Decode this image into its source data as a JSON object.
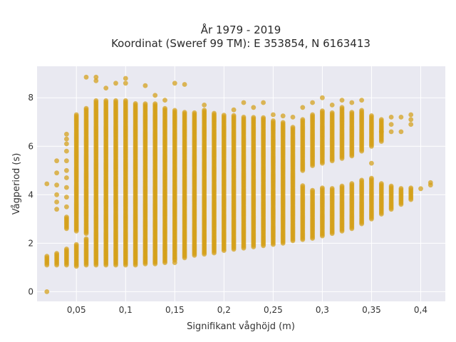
{
  "chart_data": {
    "type": "scatter",
    "title_line1": "År 1979 - 2019",
    "title_line2": "Koordinat (Sweref 99 TM): E 353854, N 6163413",
    "xlabel": "Signifikant våghöjd (m)",
    "ylabel": "Vågperiod (s)",
    "xlim": [
      0.01,
      0.425
    ],
    "ylim": [
      -0.4,
      9.3
    ],
    "x_ticks": [
      0.05,
      0.1,
      0.15,
      0.2,
      0.25,
      0.3,
      0.35,
      0.4
    ],
    "x_tick_labels": [
      "0,05",
      "0,1",
      "0,15",
      "0,2",
      "0,25",
      "0,3",
      "0,35",
      "0,4"
    ],
    "y_ticks": [
      0,
      2,
      4,
      6,
      8
    ],
    "y_tick_labels": [
      "0",
      "2",
      "4",
      "6",
      "8"
    ],
    "grid": true,
    "legend": "none",
    "colors": {
      "background": "#e9e9f1",
      "grid": "#ffffff",
      "point": "#d4a017"
    },
    "columns": [
      {
        "x": 0.02,
        "segments": [
          [
            1.1,
            1.5
          ]
        ],
        "points": [
          0.0,
          4.45
        ]
      },
      {
        "x": 0.03,
        "segments": [
          [
            1.1,
            1.6
          ]
        ],
        "points": [
          3.4,
          3.7,
          4.0,
          4.4,
          4.9,
          5.4
        ]
      },
      {
        "x": 0.04,
        "segments": [
          [
            1.1,
            1.8
          ],
          [
            2.6,
            3.1
          ]
        ],
        "points": [
          3.5,
          3.9,
          4.3,
          4.7,
          5.0,
          5.4,
          5.8,
          6.1,
          6.3,
          6.5
        ]
      },
      {
        "x": 0.05,
        "segments": [
          [
            1.05,
            2.0
          ],
          [
            2.5,
            7.3
          ]
        ],
        "points": []
      },
      {
        "x": 0.06,
        "segments": [
          [
            1.1,
            2.2
          ],
          [
            2.4,
            7.6
          ]
        ],
        "points": [
          8.85
        ]
      },
      {
        "x": 0.07,
        "segments": [
          [
            1.1,
            7.9
          ]
        ],
        "points": [
          8.7,
          8.85
        ]
      },
      {
        "x": 0.08,
        "segments": [
          [
            1.1,
            7.9
          ]
        ],
        "points": [
          8.4
        ]
      },
      {
        "x": 0.09,
        "segments": [
          [
            1.1,
            7.9
          ]
        ],
        "points": [
          8.6
        ]
      },
      {
        "x": 0.1,
        "segments": [
          [
            1.1,
            7.9
          ]
        ],
        "points": [
          8.6,
          8.8
        ]
      },
      {
        "x": 0.11,
        "segments": [
          [
            1.1,
            7.8
          ]
        ],
        "points": []
      },
      {
        "x": 0.12,
        "segments": [
          [
            1.15,
            7.8
          ]
        ],
        "points": [
          8.5
        ]
      },
      {
        "x": 0.13,
        "segments": [
          [
            1.15,
            7.8
          ]
        ],
        "points": [
          8.1
        ]
      },
      {
        "x": 0.14,
        "segments": [
          [
            1.2,
            7.6
          ]
        ],
        "points": [
          7.9
        ]
      },
      {
        "x": 0.15,
        "segments": [
          [
            1.3,
            7.5
          ]
        ],
        "points": [
          1.2,
          8.6
        ]
      },
      {
        "x": 0.16,
        "segments": [
          [
            1.4,
            7.4
          ]
        ],
        "points": [
          8.55
        ]
      },
      {
        "x": 0.17,
        "segments": [
          [
            1.5,
            7.4
          ]
        ],
        "points": []
      },
      {
        "x": 0.18,
        "segments": [
          [
            1.55,
            7.5
          ]
        ],
        "points": [
          7.7
        ]
      },
      {
        "x": 0.19,
        "segments": [
          [
            1.6,
            7.4
          ]
        ],
        "points": []
      },
      {
        "x": 0.2,
        "segments": [
          [
            1.7,
            7.3
          ]
        ],
        "points": []
      },
      {
        "x": 0.21,
        "segments": [
          [
            1.75,
            7.3
          ]
        ],
        "points": [
          7.5
        ]
      },
      {
        "x": 0.22,
        "segments": [
          [
            1.8,
            7.2
          ]
        ],
        "points": [
          7.8
        ]
      },
      {
        "x": 0.23,
        "segments": [
          [
            1.85,
            7.2
          ]
        ],
        "points": [
          7.6
        ]
      },
      {
        "x": 0.24,
        "segments": [
          [
            1.9,
            7.2
          ]
        ],
        "points": [
          7.8
        ]
      },
      {
        "x": 0.25,
        "segments": [
          [
            1.95,
            7.1
          ]
        ],
        "points": [
          7.3
        ]
      },
      {
        "x": 0.26,
        "segments": [
          [
            2.0,
            7.0
          ]
        ],
        "points": [
          7.25
        ]
      },
      {
        "x": 0.27,
        "segments": [
          [
            2.1,
            6.8
          ]
        ],
        "points": [
          7.2
        ]
      },
      {
        "x": 0.28,
        "segments": [
          [
            2.15,
            4.4
          ],
          [
            5.0,
            7.1
          ]
        ],
        "points": [
          7.6
        ]
      },
      {
        "x": 0.29,
        "segments": [
          [
            2.2,
            4.2
          ],
          [
            5.2,
            7.3
          ]
        ],
        "points": [
          7.8
        ]
      },
      {
        "x": 0.3,
        "segments": [
          [
            2.3,
            4.3
          ],
          [
            5.3,
            7.5
          ]
        ],
        "points": [
          8.0
        ]
      },
      {
        "x": 0.31,
        "segments": [
          [
            2.4,
            4.3
          ],
          [
            5.4,
            7.4
          ]
        ],
        "points": [
          7.7
        ]
      },
      {
        "x": 0.32,
        "segments": [
          [
            2.5,
            4.4
          ],
          [
            5.5,
            7.6
          ]
        ],
        "points": [
          7.9
        ]
      },
      {
        "x": 0.33,
        "segments": [
          [
            2.6,
            4.5
          ],
          [
            5.6,
            7.4
          ]
        ],
        "points": [
          7.8
        ]
      },
      {
        "x": 0.34,
        "segments": [
          [
            2.8,
            4.6
          ],
          [
            5.8,
            7.5
          ]
        ],
        "points": [
          7.9
        ]
      },
      {
        "x": 0.35,
        "segments": [
          [
            3.0,
            4.7
          ],
          [
            6.0,
            7.3
          ]
        ],
        "points": [
          5.3
        ]
      },
      {
        "x": 0.36,
        "segments": [
          [
            3.2,
            4.5
          ],
          [
            6.2,
            7.1
          ]
        ],
        "points": [
          6.6
        ]
      },
      {
        "x": 0.37,
        "segments": [
          [
            3.4,
            4.4
          ]
        ],
        "points": [
          6.6,
          6.9,
          7.2
        ]
      },
      {
        "x": 0.38,
        "segments": [
          [
            3.6,
            4.3
          ]
        ],
        "points": [
          6.6,
          7.2
        ]
      },
      {
        "x": 0.39,
        "segments": [
          [
            3.8,
            4.3
          ]
        ],
        "points": [
          6.9,
          7.1,
          7.3
        ]
      },
      {
        "x": 0.4,
        "segments": [],
        "points": [
          4.25
        ]
      },
      {
        "x": 0.41,
        "segments": [],
        "points": [
          4.4,
          4.5
        ]
      }
    ]
  }
}
